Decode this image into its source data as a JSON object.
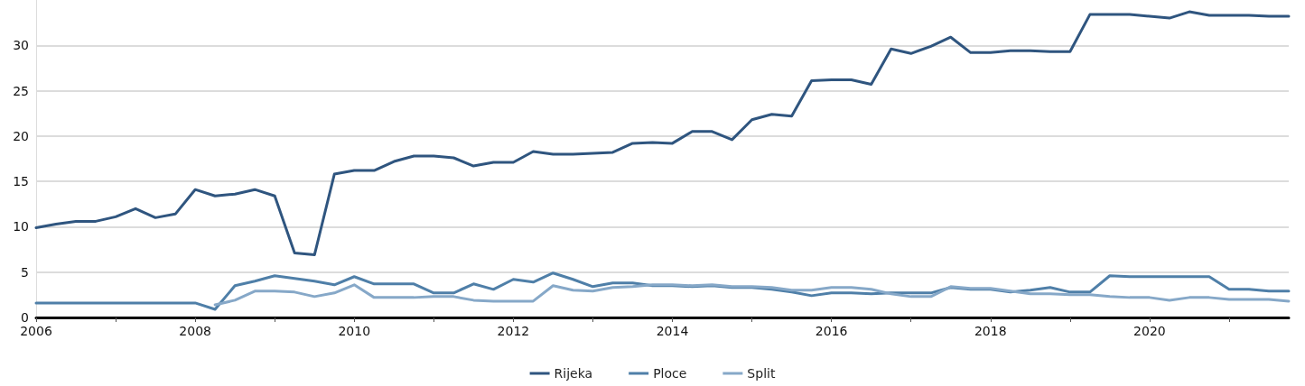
{
  "chart_data": {
    "type": "line",
    "x": [
      2006,
      2006.25,
      2006.5,
      2006.75,
      2007,
      2007.25,
      2007.5,
      2007.75,
      2008,
      2008.25,
      2008.5,
      2008.75,
      2009,
      2009.25,
      2009.5,
      2009.75,
      2010,
      2010.25,
      2010.5,
      2010.75,
      2011,
      2011.25,
      2011.5,
      2011.75,
      2012,
      2012.25,
      2012.5,
      2012.75,
      2013,
      2013.25,
      2013.5,
      2013.75,
      2014,
      2014.25,
      2014.5,
      2014.75,
      2015,
      2015.25,
      2015.5,
      2015.75,
      2016,
      2016.25,
      2016.5,
      2016.75,
      2017,
      2017.25,
      2017.5,
      2017.75,
      2018,
      2018.25,
      2018.5,
      2018.75,
      2019,
      2019.25,
      2019.5,
      2019.75,
      2020,
      2020.25,
      2020.5,
      2020.75,
      2021,
      2021.25,
      2021.5,
      2021.75
    ],
    "series": [
      {
        "name": "Rijeka",
        "color": "#2f557f",
        "values": [
          9.9,
          10.3,
          10.6,
          10.6,
          11.1,
          12.0,
          11.0,
          11.4,
          14.1,
          13.4,
          13.6,
          14.1,
          13.4,
          7.1,
          6.9,
          15.8,
          16.2,
          16.2,
          17.2,
          17.8,
          17.8,
          17.6,
          16.7,
          17.1,
          17.1,
          18.3,
          18.0,
          18.0,
          18.1,
          18.2,
          19.2,
          19.3,
          19.2,
          20.5,
          20.5,
          19.6,
          21.8,
          22.4,
          22.2,
          26.1,
          26.2,
          26.2,
          25.7,
          29.6,
          29.1,
          29.9,
          30.9,
          29.2,
          29.2,
          29.4,
          29.4,
          29.3,
          29.3,
          33.4,
          33.4,
          33.4,
          33.2,
          33.0,
          33.7,
          33.3,
          33.3,
          33.3,
          33.2,
          33.2
        ]
      },
      {
        "name": "Ploce",
        "color": "#4f7fa8",
        "values": [
          1.6,
          1.6,
          1.6,
          1.6,
          1.6,
          1.6,
          1.6,
          1.6,
          1.6,
          0.9,
          3.5,
          4.0,
          4.6,
          4.3,
          4.0,
          3.6,
          4.5,
          3.7,
          3.7,
          3.7,
          2.7,
          2.7,
          3.7,
          3.1,
          4.2,
          3.9,
          4.9,
          4.2,
          3.4,
          3.8,
          3.8,
          3.5,
          3.5,
          3.4,
          3.5,
          3.3,
          3.3,
          3.1,
          2.8,
          2.4,
          2.7,
          2.7,
          2.6,
          2.7,
          2.7,
          2.7,
          3.3,
          3.1,
          3.1,
          2.8,
          3.0,
          3.3,
          2.8,
          2.8,
          4.6,
          4.5,
          4.5,
          4.5,
          4.5,
          4.5,
          3.1,
          3.1,
          2.9,
          2.9
        ]
      },
      {
        "name": "Split",
        "color": "#86a8c8",
        "values": [
          null,
          null,
          null,
          null,
          null,
          null,
          null,
          null,
          null,
          1.4,
          1.9,
          2.9,
          2.9,
          2.8,
          2.3,
          2.7,
          3.6,
          2.2,
          2.2,
          2.2,
          2.3,
          2.3,
          1.9,
          1.8,
          1.8,
          1.8,
          3.5,
          3.0,
          2.9,
          3.3,
          3.4,
          3.6,
          3.6,
          3.5,
          3.6,
          3.4,
          3.4,
          3.3,
          3.0,
          3.0,
          3.3,
          3.3,
          3.1,
          2.6,
          2.3,
          2.3,
          3.4,
          3.2,
          3.2,
          2.9,
          2.6,
          2.6,
          2.5,
          2.5,
          2.3,
          2.2,
          2.2,
          1.9,
          2.2,
          2.2,
          2.0,
          2.0,
          2.0,
          1.8
        ]
      }
    ],
    "xlim": [
      2006,
      2021.75
    ],
    "xticks": [
      2006,
      {
        "value": 2007,
        "label": null
      },
      2008,
      {
        "value": 2009,
        "label": null
      },
      2010,
      {
        "value": 2011,
        "label": null
      },
      2012,
      {
        "value": 2013,
        "label": null
      },
      2014,
      {
        "value": 2015,
        "label": null
      },
      2016,
      {
        "value": 2017,
        "label": null
      },
      2018,
      {
        "value": 2019,
        "label": null
      },
      2020,
      {
        "value": 2021,
        "label": null
      }
    ],
    "ylim": [
      0,
      35
    ],
    "yticks": [
      0,
      5,
      10,
      15,
      20,
      25,
      30
    ],
    "grid": "y",
    "legend": "bottom",
    "marker": "none",
    "line_style": "solid"
  }
}
